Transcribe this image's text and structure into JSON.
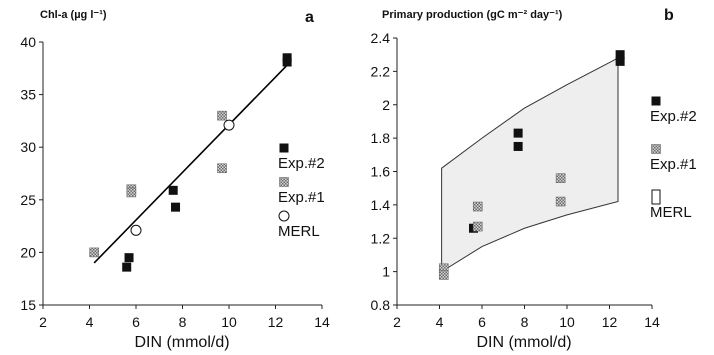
{
  "colors": {
    "exp2": "#111111",
    "exp1": "#9a9a9a",
    "merl_fill": "#ffffff",
    "envelope": "#eeeeee",
    "line": "#000000"
  },
  "chart_data": [
    {
      "type": "scatter",
      "panel_label": "a",
      "title": "",
      "xlabel": "DIN (mmol/d)",
      "ylabel": "Chl-a (µg l⁻¹)",
      "xlim": [
        2,
        14
      ],
      "ylim": [
        15,
        40
      ],
      "xticks": [
        "2",
        "4",
        "6",
        "8",
        "10",
        "12",
        "14"
      ],
      "yticks": [
        "15",
        "20",
        "25",
        "30",
        "35",
        "40"
      ],
      "grid": false,
      "legend_position": "right",
      "series": [
        {
          "name": "Exp.#2",
          "marker": "filled-square",
          "points": [
            [
              5.6,
              18.6
            ],
            [
              5.7,
              19.5
            ],
            [
              7.6,
              25.9
            ],
            [
              7.7,
              24.3
            ],
            [
              12.5,
              38.5
            ],
            [
              12.5,
              38.1
            ]
          ]
        },
        {
          "name": "Exp.#1",
          "marker": "hatched-square",
          "points": [
            [
              4.2,
              20.0
            ],
            [
              5.8,
              26.0
            ],
            [
              5.8,
              25.7
            ],
            [
              9.7,
              33.0
            ],
            [
              9.7,
              28.0
            ]
          ]
        },
        {
          "name": "MERL",
          "marker": "open-circle",
          "points": [
            [
              6.0,
              22.1
            ],
            [
              10.0,
              32.1
            ]
          ]
        }
      ],
      "trendline": {
        "x1": 4.2,
        "y1": 19.0,
        "x2": 12.5,
        "y2": 37.8
      }
    },
    {
      "type": "scatter",
      "panel_label": "b",
      "title": "",
      "xlabel": "DIN (mmol/d)",
      "ylabel": "Primary production (gC m⁻² day⁻¹)",
      "xlim": [
        2,
        14
      ],
      "ylim": [
        0.8,
        2.4
      ],
      "xticks": [
        "2",
        "4",
        "6",
        "8",
        "10",
        "12",
        "14"
      ],
      "yticks": [
        "0.8",
        "1",
        "1.2",
        "1.4",
        "1.6",
        "1.8",
        "2",
        "2.2",
        "2.4"
      ],
      "grid": false,
      "legend_position": "right",
      "series": [
        {
          "name": "Exp.#2",
          "marker": "filled-square",
          "points": [
            [
              5.6,
              1.26
            ],
            [
              7.7,
              1.83
            ],
            [
              7.7,
              1.75
            ],
            [
              12.5,
              2.3
            ],
            [
              12.5,
              2.26
            ]
          ]
        },
        {
          "name": "Exp.#1",
          "marker": "hatched-square",
          "points": [
            [
              4.2,
              1.02
            ],
            [
              4.2,
              0.98
            ],
            [
              5.8,
              1.39
            ],
            [
              5.8,
              1.27
            ],
            [
              9.7,
              1.56
            ],
            [
              9.7,
              1.42
            ]
          ]
        },
        {
          "name": "MERL",
          "marker": "envelope",
          "upper": [
            [
              4.1,
              1.62
            ],
            [
              6.0,
              1.8
            ],
            [
              8.0,
              1.98
            ],
            [
              10.0,
              2.12
            ],
            [
              12.4,
              2.28
            ]
          ],
          "lower": [
            [
              4.1,
              1.0
            ],
            [
              6.0,
              1.15
            ],
            [
              8.0,
              1.26
            ],
            [
              10.0,
              1.34
            ],
            [
              12.4,
              1.42
            ]
          ]
        }
      ]
    }
  ]
}
